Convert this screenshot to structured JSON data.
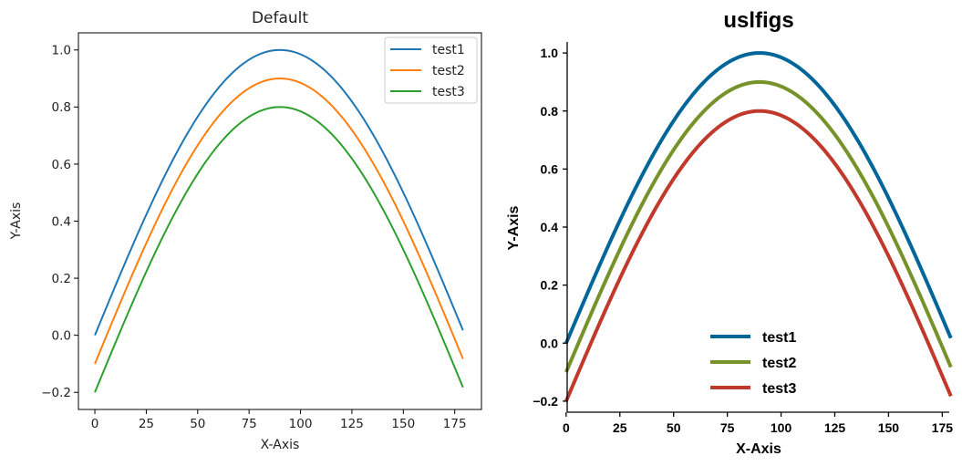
{
  "chart_data": [
    {
      "type": "line",
      "title": "Default",
      "xlabel": "X-Axis",
      "ylabel": "Y-Axis",
      "xlim": [
        -8,
        188
      ],
      "ylim": [
        -0.26,
        1.06
      ],
      "xticks": [
        0,
        25,
        50,
        75,
        100,
        125,
        150,
        175
      ],
      "xtick_labels": [
        "0",
        "25",
        "50",
        "75",
        "100",
        "125",
        "150",
        "175"
      ],
      "yticks": [
        -0.2,
        0.0,
        0.2,
        0.4,
        0.6,
        0.8,
        1.0
      ],
      "ytick_labels": [
        "−0.2",
        "0.0",
        "0.2",
        "0.4",
        "0.6",
        "0.8",
        "1.0"
      ],
      "grid": false,
      "legend": "upper-right",
      "x": [
        0,
        10,
        20,
        30,
        40,
        50,
        60,
        70,
        80,
        90,
        100,
        110,
        120,
        130,
        140,
        150,
        160,
        170,
        179
      ],
      "series": [
        {
          "name": "test1",
          "color": "#1f77b4",
          "values": [
            0.0,
            0.174,
            0.342,
            0.5,
            0.643,
            0.766,
            0.866,
            0.94,
            0.985,
            1.0,
            0.985,
            0.94,
            0.866,
            0.766,
            0.643,
            0.5,
            0.342,
            0.174,
            0.017
          ]
        },
        {
          "name": "test2",
          "color": "#ff7f0e",
          "values": [
            -0.1,
            0.074,
            0.242,
            0.4,
            0.543,
            0.666,
            0.766,
            0.84,
            0.885,
            0.9,
            0.885,
            0.84,
            0.766,
            0.666,
            0.543,
            0.4,
            0.242,
            0.074,
            -0.083
          ]
        },
        {
          "name": "test3",
          "color": "#2ca02c",
          "values": [
            -0.2,
            -0.026,
            0.142,
            0.3,
            0.443,
            0.566,
            0.666,
            0.74,
            0.785,
            0.8,
            0.785,
            0.74,
            0.666,
            0.566,
            0.443,
            0.3,
            0.142,
            -0.026,
            -0.183
          ]
        }
      ]
    },
    {
      "type": "line",
      "title": "uslfigs",
      "xlabel": "X-Axis",
      "ylabel": "Y-Axis",
      "xlim": [
        -8,
        188
      ],
      "ylim": [
        -0.26,
        1.06
      ],
      "xticks": [
        0,
        25,
        50,
        75,
        100,
        125,
        150,
        175
      ],
      "xtick_labels": [
        "0",
        "25",
        "50",
        "75",
        "100",
        "125",
        "150",
        "175"
      ],
      "yticks": [
        -0.2,
        0.0,
        0.2,
        0.4,
        0.6,
        0.8,
        1.0
      ],
      "ytick_labels": [
        "−0.2",
        "0.0",
        "0.2",
        "0.4",
        "0.6",
        "0.8",
        "1.0"
      ],
      "grid": false,
      "legend": "lower-center",
      "x": [
        0,
        10,
        20,
        30,
        40,
        50,
        60,
        70,
        80,
        90,
        100,
        110,
        120,
        130,
        140,
        150,
        160,
        170,
        179
      ],
      "series": [
        {
          "name": "test1",
          "color": "#006699",
          "values": [
            0.0,
            0.174,
            0.342,
            0.5,
            0.643,
            0.766,
            0.866,
            0.94,
            0.985,
            1.0,
            0.985,
            0.94,
            0.866,
            0.766,
            0.643,
            0.5,
            0.342,
            0.174,
            0.017
          ]
        },
        {
          "name": "test2",
          "color": "#77922b",
          "values": [
            -0.1,
            0.074,
            0.242,
            0.4,
            0.543,
            0.666,
            0.766,
            0.84,
            0.885,
            0.9,
            0.885,
            0.84,
            0.766,
            0.666,
            0.543,
            0.4,
            0.242,
            0.074,
            -0.083
          ]
        },
        {
          "name": "test3",
          "color": "#c0392b",
          "values": [
            -0.2,
            -0.026,
            0.142,
            0.3,
            0.443,
            0.566,
            0.666,
            0.74,
            0.785,
            0.8,
            0.785,
            0.74,
            0.666,
            0.566,
            0.443,
            0.3,
            0.142,
            -0.026,
            -0.183
          ]
        }
      ]
    }
  ]
}
